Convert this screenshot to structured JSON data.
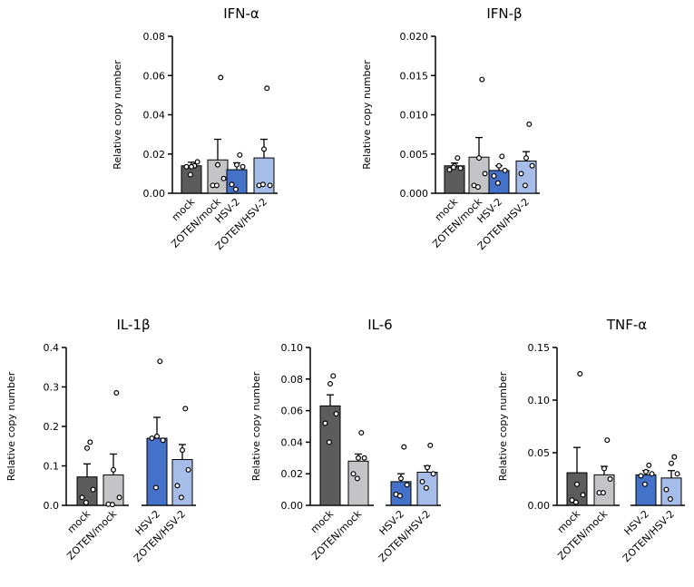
{
  "chart_data": [
    {
      "type": "bar",
      "title": "IFN-α",
      "ylabel": "Relative copy number",
      "ylim": [
        0,
        0.08
      ],
      "yticks": [
        "0.00",
        "0.02",
        "0.04",
        "0.06",
        "0.08"
      ],
      "categories": [
        "mock",
        "ZOTEN/mock",
        "HSV-2",
        "ZOTEN/HSV-2"
      ],
      "values": [
        0.014,
        0.017,
        0.012,
        0.018
      ],
      "errors": [
        0.0018,
        0.0105,
        0.0035,
        0.0095
      ],
      "points": [
        [
          0.014,
          0.0135,
          0.016,
          0.0135,
          0.0095
        ],
        [
          0.059,
          0.0145,
          0.0075,
          0.004,
          0.004
        ],
        [
          0.0195,
          0.0145,
          0.0135,
          0.0045,
          0.002
        ],
        [
          0.0535,
          0.0225,
          0.004,
          0.004,
          0.0045
        ]
      ],
      "colors": [
        "#5c5c5c",
        "#c4c4c6",
        "#4472c9",
        "#a7bde9"
      ]
    },
    {
      "type": "bar",
      "title": "IFN-β",
      "ylabel": "Relative copy number",
      "ylim": [
        0,
        0.02
      ],
      "yticks": [
        "0.000",
        "0.005",
        "0.010",
        "0.015",
        "0.020"
      ],
      "categories": [
        "mock",
        "ZOTEN/mock",
        "HSV-2",
        "ZOTEN/HSV-2"
      ],
      "values": [
        0.0035,
        0.0046,
        0.0029,
        0.0041
      ],
      "errors": [
        0.00035,
        0.0025,
        0.0006,
        0.0012
      ],
      "points": [
        [
          0.0045,
          0.0035,
          0.0032,
          0.003,
          0.0033
        ],
        [
          0.0145,
          0.0045,
          0.0025,
          0.001,
          0.0008
        ],
        [
          0.0047,
          0.0035,
          0.0029,
          0.0022,
          0.0013
        ],
        [
          0.0088,
          0.0045,
          0.0035,
          0.0025,
          0.001
        ]
      ],
      "colors": [
        "#5c5c5c",
        "#c4c4c6",
        "#4472c9",
        "#a7bde9"
      ]
    },
    {
      "type": "bar",
      "title": "IL-1β",
      "ylabel": "Relative copy number",
      "ylim": [
        0,
        0.4
      ],
      "yticks": [
        "0.0",
        "0.1",
        "0.2",
        "0.3",
        "0.4"
      ],
      "categories": [
        "mock",
        "ZOTEN/mock",
        "HSV-2",
        "ZOTEN/HSV-2"
      ],
      "values": [
        0.072,
        0.077,
        0.17,
        0.116
      ],
      "errors": [
        0.033,
        0.053,
        0.053,
        0.038
      ],
      "points": [
        [
          0.16,
          0.145,
          0.04,
          0.02,
          0.007
        ],
        [
          0.285,
          0.09,
          0.02,
          0.003,
          0.002
        ],
        [
          0.365,
          0.175,
          0.165,
          0.17,
          0.045
        ],
        [
          0.245,
          0.14,
          0.09,
          0.05,
          0.02
        ]
      ],
      "colors": [
        "#5c5c5c",
        "#c4c4c6",
        "#4472c9",
        "#a7bde9"
      ]
    },
    {
      "type": "bar",
      "title": "IL-6",
      "ylabel": "Relative copy number",
      "ylim": [
        0,
        0.1
      ],
      "yticks": [
        "0.00",
        "0.02",
        "0.04",
        "0.06",
        "0.08",
        "0.10"
      ],
      "categories": [
        "mock",
        "ZOTEN/mock",
        "HSV-2",
        "ZOTEN/HSV-2"
      ],
      "values": [
        0.063,
        0.028,
        0.015,
        0.021
      ],
      "errors": [
        0.007,
        0.0045,
        0.005,
        0.004
      ],
      "points": [
        [
          0.082,
          0.077,
          0.058,
          0.052,
          0.04
        ],
        [
          0.046,
          0.03,
          0.03,
          0.02,
          0.017
        ],
        [
          0.037,
          0.017,
          0.013,
          0.007,
          0.006
        ],
        [
          0.038,
          0.024,
          0.02,
          0.015,
          0.011
        ]
      ],
      "colors": [
        "#5c5c5c",
        "#c4c4c6",
        "#4472c9",
        "#a7bde9"
      ]
    },
    {
      "type": "bar",
      "title": "TNF-α",
      "ylabel": "Relative copy number",
      "ylim": [
        0,
        0.15
      ],
      "yticks": [
        "0.00",
        "0.05",
        "0.10",
        "0.15"
      ],
      "categories": [
        "mock",
        "ZOTEN/mock",
        "HSV-2",
        "ZOTEN/HSV-2"
      ],
      "values": [
        0.031,
        0.029,
        0.029,
        0.026
      ],
      "errors": [
        0.024,
        0.008,
        0.004,
        0.007
      ],
      "points": [
        [
          0.125,
          0.02,
          0.01,
          0.005,
          0.003
        ],
        [
          0.062,
          0.035,
          0.025,
          0.012,
          0.012
        ],
        [
          0.038,
          0.032,
          0.03,
          0.028,
          0.02
        ],
        [
          0.046,
          0.04,
          0.03,
          0.015,
          0.006
        ]
      ],
      "colors": [
        "#5c5c5c",
        "#c4c4c6",
        "#4472c9",
        "#a7bde9"
      ]
    }
  ]
}
